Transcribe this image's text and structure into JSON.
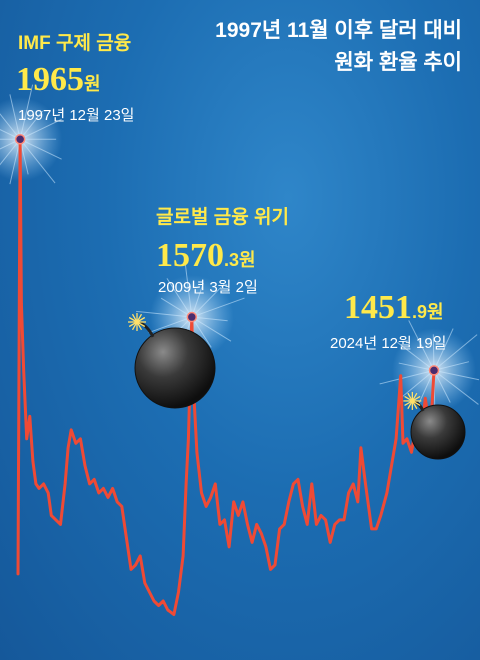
{
  "header": {
    "line1": "1997년 11월 이후 달러 대비",
    "line2": "원화 환율 추이"
  },
  "annotations": [
    {
      "event": "IMF 구제 금융",
      "value_int": "1965",
      "value_dec": "",
      "unit": "원",
      "date": "1997년 12월 23일"
    },
    {
      "event": "글로벌 금융 위기",
      "value_int": "1570",
      "value_dec": ".3",
      "unit": "원",
      "date": "2009년 3월 2일"
    },
    {
      "event": "",
      "value_int": "1451",
      "value_dec": ".9",
      "unit": "원",
      "date": "2024년 12월 19일"
    }
  ],
  "colors": {
    "line": "#ef4a35",
    "accent_text": "#ffe94a",
    "marker": "#4a2c6e",
    "background": "#1c6db2"
  },
  "chart_data": {
    "type": "line",
    "title": "1997년 11월 이후 달러 대비 원화 환율 추이",
    "xlabel": "",
    "ylabel": "",
    "x": [
      1997.83,
      1997.97,
      1998.05,
      1998.2,
      1998.4,
      1998.6,
      1998.8,
      1999.0,
      1999.2,
      1999.5,
      1999.8,
      2000.0,
      2000.3,
      2000.6,
      2000.9,
      2001.1,
      2001.3,
      2001.6,
      2001.9,
      2002.2,
      2002.5,
      2002.8,
      2003.1,
      2003.4,
      2003.7,
      2004.0,
      2004.3,
      2004.6,
      2004.9,
      2005.2,
      2005.5,
      2005.8,
      2006.1,
      2006.4,
      2006.7,
      2007.0,
      2007.3,
      2007.6,
      2007.8,
      2008.0,
      2008.3,
      2008.6,
      2008.8,
      2008.95,
      2009.17,
      2009.3,
      2009.5,
      2009.8,
      2010.1,
      2010.4,
      2010.7,
      2011.0,
      2011.3,
      2011.6,
      2011.9,
      2012.2,
      2012.5,
      2012.8,
      2013.1,
      2013.4,
      2013.7,
      2014.0,
      2014.3,
      2014.6,
      2014.9,
      2015.2,
      2015.5,
      2015.8,
      2016.1,
      2016.4,
      2016.7,
      2017.0,
      2017.3,
      2017.6,
      2017.9,
      2018.2,
      2018.5,
      2018.8,
      2019.1,
      2019.4,
      2019.7,
      2020.0,
      2020.2,
      2020.5,
      2020.9,
      2021.2,
      2021.5,
      2021.9,
      2022.2,
      2022.5,
      2022.8,
      2022.95,
      2023.2,
      2023.5,
      2023.8,
      2024.1,
      2024.4,
      2024.7,
      2024.85,
      2024.97
    ],
    "series": [
      {
        "name": "",
        "values": [
          1000,
          1965,
          1600,
          1450,
          1300,
          1350,
          1250,
          1200,
          1190,
          1200,
          1180,
          1130,
          1120,
          1110,
          1200,
          1280,
          1320,
          1290,
          1300,
          1240,
          1200,
          1210,
          1180,
          1190,
          1170,
          1190,
          1160,
          1150,
          1080,
          1010,
          1020,
          1040,
          980,
          960,
          940,
          930,
          940,
          920,
          915,
          910,
          960,
          1040,
          1200,
          1300,
          1570,
          1400,
          1270,
          1180,
          1150,
          1170,
          1200,
          1110,
          1120,
          1060,
          1160,
          1130,
          1160,
          1110,
          1070,
          1110,
          1090,
          1060,
          1010,
          1020,
          1100,
          1110,
          1160,
          1200,
          1210,
          1150,
          1110,
          1200,
          1110,
          1130,
          1120,
          1070,
          1110,
          1120,
          1120,
          1180,
          1200,
          1160,
          1280,
          1200,
          1100,
          1100,
          1130,
          1180,
          1240,
          1300,
          1440,
          1290,
          1300,
          1270,
          1330,
          1300,
          1390,
          1320,
          1380,
          1451.9
        ]
      }
    ],
    "xlim": [
      1997.83,
      2024.97
    ],
    "ylim": [
      880,
      1990
    ],
    "grid": false,
    "legend": "none",
    "annotated_points": [
      {
        "x": 1997.97,
        "y": 1965
      },
      {
        "x": 2009.17,
        "y": 1570.3
      },
      {
        "x": 2024.97,
        "y": 1451.9
      }
    ]
  }
}
